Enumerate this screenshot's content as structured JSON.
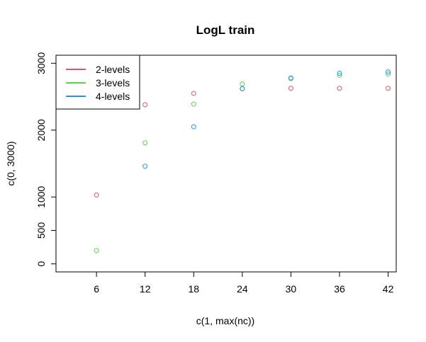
{
  "chart_data": {
    "type": "scatter",
    "title": "LogL train",
    "xlabel": "c(1, max(nc))",
    "ylabel": "c(0, 3000)",
    "xlim": [
      1,
      43
    ],
    "ylim": [
      -120,
      3120
    ],
    "x_ticks": [
      6,
      12,
      18,
      24,
      30,
      36,
      42
    ],
    "y_ticks": [
      0,
      500,
      1000,
      2000,
      3000
    ],
    "grid": false,
    "legend_position": "top-left",
    "series": [
      {
        "name": "2-levels",
        "color": "#DF536B",
        "x": [
          6,
          12,
          18,
          24,
          30,
          36,
          42
        ],
        "y": [
          1030,
          2380,
          2550,
          2620,
          2625,
          2625,
          2625
        ]
      },
      {
        "name": "3-levels",
        "color": "#61D04F",
        "x": [
          6,
          12,
          18,
          24,
          30,
          36,
          42
        ],
        "y": [
          200,
          1810,
          2390,
          2690,
          2770,
          2820,
          2840
        ]
      },
      {
        "name": "4-levels",
        "color": "#2297E6",
        "x": [
          12,
          18,
          24,
          30,
          36,
          42
        ],
        "y": [
          1460,
          2050,
          2620,
          2780,
          2850,
          2870
        ]
      }
    ]
  }
}
